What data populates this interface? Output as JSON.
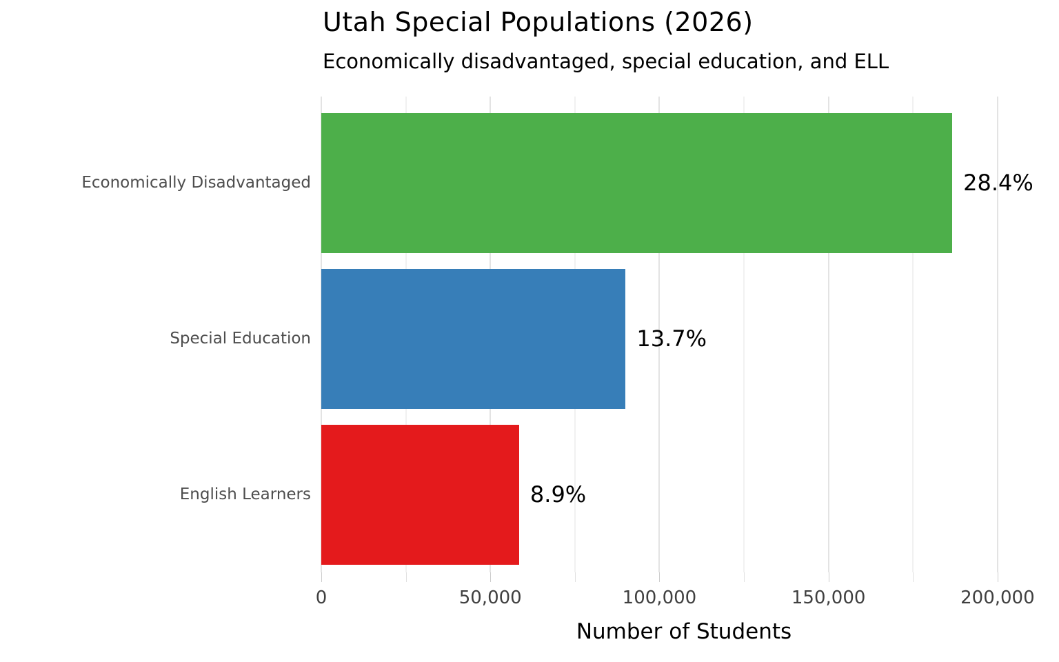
{
  "chart_data": {
    "type": "bar",
    "orientation": "horizontal",
    "title": "Utah Special Populations (2026)",
    "subtitle": "Economically disadvantaged, special education, and ELL",
    "xlabel": "Number of Students",
    "ylabel": "",
    "categories": [
      "Economically Disadvantaged",
      "Special Education",
      "English Learners"
    ],
    "values": [
      186600,
      90000,
      58500
    ],
    "bar_labels": [
      "28.4%",
      "13.7%",
      "8.9%"
    ],
    "bar_colors": [
      "#4daf4a",
      "#377eb8",
      "#e41a1c"
    ],
    "xlim": [
      0,
      214500
    ],
    "x_major_ticks": [
      0,
      50000,
      100000,
      150000,
      200000
    ],
    "x_major_tick_labels": [
      "0",
      "50,000",
      "100,000",
      "150,000",
      "200,000"
    ],
    "x_minor_ticks": [
      25000,
      75000,
      125000,
      175000
    ],
    "grid": "vertical, major and minor, light gray",
    "legend": "none",
    "colors": {
      "background": "#ffffff",
      "title_text": "#000000",
      "category_label_text": "#4d4d4d",
      "tick_label_text": "#404040",
      "value_label_text": "#000000",
      "major_gridline": "#e3e3e3",
      "minor_gridline": "#f1f1f1",
      "tick_mark": "#cccccc"
    }
  }
}
